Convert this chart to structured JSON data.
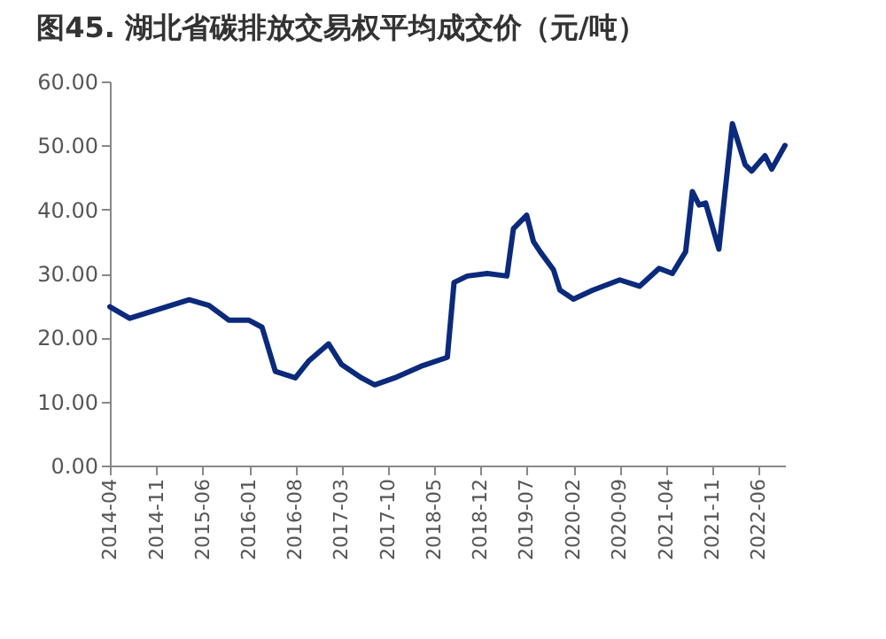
{
  "chart_data": {
    "type": "line",
    "title": "图45. 湖北省碳排放交易权平均成交价（元/吨）",
    "x": [
      "2014-04",
      "2014-07",
      "2015-04",
      "2015-07",
      "2015-10",
      "2016-01",
      "2016-03",
      "2016-05",
      "2016-08",
      "2016-10",
      "2017-01",
      "2017-03",
      "2017-06",
      "2017-08",
      "2017-11",
      "2018-03",
      "2018-07",
      "2018-08",
      "2018-10",
      "2019-01",
      "2019-04",
      "2019-05",
      "2019-07",
      "2019-08",
      "2019-09",
      "2019-11",
      "2019-12",
      "2020-02",
      "2020-05",
      "2020-09",
      "2020-12",
      "2021-03",
      "2021-05",
      "2021-07",
      "2021-08",
      "2021-09",
      "2021-10",
      "2021-12",
      "2022-02",
      "2022-04",
      "2022-05",
      "2022-07",
      "2022-08",
      "2022-10"
    ],
    "series": [
      {
        "color": "#0b2a7c",
        "values": [
          24.8,
          23,
          25.9,
          25,
          22.7,
          22.7,
          21.6,
          14.7,
          13.7,
          16.3,
          19,
          15.8,
          13.7,
          12.6,
          13.7,
          15.5,
          16.9,
          28.6,
          29.6,
          30,
          29.6,
          37,
          39.1,
          35,
          33.4,
          30.6,
          27.4,
          26,
          27.4,
          29,
          28,
          30.8,
          30,
          33.4,
          42.8,
          40.7,
          41,
          33.8,
          53.4,
          47,
          46,
          48.4,
          46.3,
          50
        ]
      }
    ],
    "xlim": [
      "2014-04",
      "2022-10"
    ],
    "xticks": [
      "2014-04",
      "2014-11",
      "2015-06",
      "2016-01",
      "2016-08",
      "2017-03",
      "2017-10",
      "2018-05",
      "2018-12",
      "2019-07",
      "2020-02",
      "2020-09",
      "2021-04",
      "2021-11",
      "2022-06"
    ],
    "ylim": [
      0,
      60
    ],
    "yticks": [
      {
        "value": 0,
        "label": "0.00"
      },
      {
        "value": 10,
        "label": "10.00"
      },
      {
        "value": 20,
        "label": "20.00"
      },
      {
        "value": 30,
        "label": "30.00"
      },
      {
        "value": 40,
        "label": "40.00"
      },
      {
        "value": 50,
        "label": "50.00"
      },
      {
        "value": 60,
        "label": "60.00"
      }
    ],
    "grid": false,
    "marker": "none",
    "line_style": "solid"
  }
}
